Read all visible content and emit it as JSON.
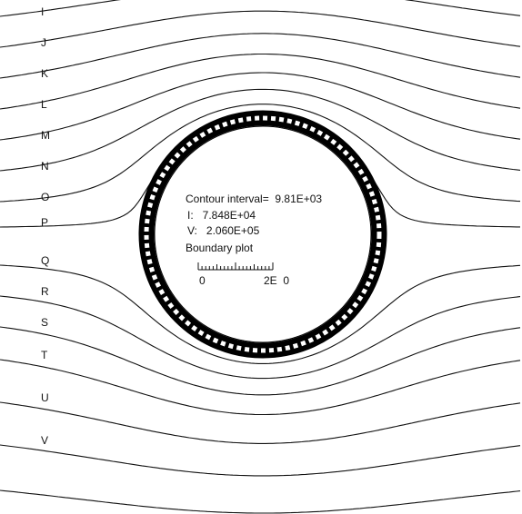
{
  "line_labels": [
    "I",
    "J",
    "K",
    "L",
    "M",
    "N",
    "O",
    "P",
    "Q",
    "R",
    "S",
    "T",
    "U",
    "V"
  ],
  "info": {
    "contour_interval": "Contour interval=  9.81E+03",
    "i_value": "I:   7.848E+04",
    "v_value": "V:   2.060E+05",
    "plot_kind": "Boundary plot"
  },
  "scale": {
    "start": "0",
    "end": "2E  0"
  }
}
